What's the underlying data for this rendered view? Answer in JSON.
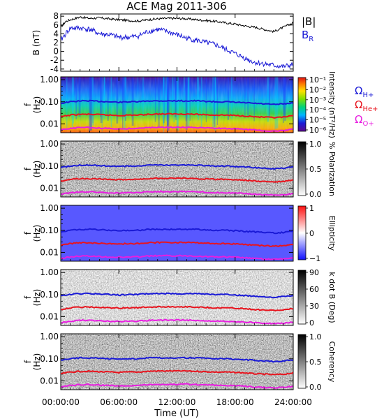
{
  "title": "ACE Mag 2011-306",
  "time_axis": {
    "label": "Time (UT)",
    "ticks": [
      "00:00:00",
      "06:00:00",
      "12:00:00",
      "18:00:00",
      "24:00:00"
    ],
    "range_hours": [
      0,
      24
    ]
  },
  "colors": {
    "B_total": "#000000",
    "B_R": "#1a1ad6",
    "omega_h": "#1a1ad6",
    "omega_he": "#e8141e",
    "omega_o": "#e81ee0"
  },
  "chart_data": [
    {
      "type": "line",
      "panel": "field",
      "ylabel": "B (nT)",
      "ylim": [
        -4.5,
        8.5
      ],
      "yticks": [
        "-4",
        "-2",
        "0",
        "2",
        "4",
        "6",
        "8"
      ],
      "legend": [
        "|B|",
        "B_R"
      ],
      "series": [
        {
          "name": "|B|",
          "x": [
            0,
            0.5,
            1,
            2,
            3,
            4,
            5,
            6,
            7,
            8,
            9,
            10,
            11,
            12,
            13,
            14,
            15,
            16,
            17,
            18,
            19,
            20,
            21,
            22,
            23,
            24
          ],
          "values": [
            5.5,
            6.8,
            7.2,
            7.8,
            7.5,
            7.6,
            7.4,
            7.2,
            7.0,
            6.9,
            7.2,
            7.4,
            7.5,
            7.5,
            7.4,
            7.2,
            7.0,
            6.8,
            6.5,
            6.2,
            5.8,
            5.5,
            5.0,
            4.5,
            5.5,
            6.5
          ]
        },
        {
          "name": "B_R",
          "x": [
            0,
            0.5,
            1,
            2,
            3,
            4,
            5,
            6,
            7,
            8,
            9,
            10,
            11,
            12,
            13,
            14,
            15,
            16,
            17,
            18,
            19,
            20,
            21,
            22,
            23,
            24
          ],
          "values": [
            2.5,
            4.0,
            5.3,
            5.3,
            5.0,
            4.0,
            3.8,
            3.2,
            3.2,
            3.5,
            4.5,
            5.0,
            4.5,
            3.8,
            3.0,
            2.5,
            2.0,
            1.5,
            0.5,
            -0.5,
            -1.5,
            -2.5,
            -2.8,
            -3.2,
            -3.5,
            -3.0
          ]
        }
      ]
    },
    {
      "type": "heatmap",
      "panel": "intensity",
      "ylabel": "f (Hz)",
      "yticks": [
        "1.00",
        "0.10",
        "0.01"
      ],
      "colorbar_label": "Intensity (nT²/Hz)",
      "colorbar_ticks": [
        "10⁻¹",
        "10⁻²",
        "10⁻³",
        "10⁻⁴",
        "10⁻⁵",
        "10⁻⁶"
      ],
      "legend": [
        "ΩH+",
        "ΩHe+",
        "ΩO+"
      ]
    },
    {
      "type": "heatmap",
      "panel": "polarization",
      "ylabel": "f (Hz)",
      "yticks": [
        "1.00",
        "0.10",
        "0.01"
      ],
      "colorbar_label": "% Polarization",
      "colorbar_ticks": [
        "1.0",
        "0.5",
        "0.0"
      ]
    },
    {
      "type": "heatmap",
      "panel": "ellipticity",
      "ylabel": "f (Hz)",
      "yticks": [
        "1.00",
        "0.10",
        "0.01"
      ],
      "colorbar_label": "Ellipticity",
      "colorbar_ticks": [
        "1",
        "0",
        "−1"
      ]
    },
    {
      "type": "heatmap",
      "panel": "kdotb",
      "ylabel": "f (Hz)",
      "yticks": [
        "1.00",
        "0.10",
        "0.01"
      ],
      "colorbar_label": "k dot B (Deg)",
      "colorbar_ticks": [
        "90",
        "60",
        "30",
        "0"
      ]
    },
    {
      "type": "heatmap",
      "panel": "coherency",
      "ylabel": "f (Hz)",
      "yticks": [
        "1.00",
        "0.10",
        "0.01"
      ],
      "colorbar_label": "Coherency",
      "colorbar_ticks": [
        "1.0",
        "0.5",
        "0.0"
      ]
    }
  ],
  "cyclotron_lines": {
    "x": [
      0,
      1,
      2,
      3,
      4,
      5,
      6,
      7,
      8,
      9,
      10,
      11,
      12,
      13,
      14,
      15,
      16,
      17,
      18,
      19,
      20,
      21,
      22,
      23,
      24
    ],
    "omega_h_hz": [
      0.085,
      0.1,
      0.11,
      0.11,
      0.105,
      0.1,
      0.095,
      0.1,
      0.1,
      0.11,
      0.11,
      0.11,
      0.11,
      0.11,
      0.11,
      0.105,
      0.1,
      0.1,
      0.095,
      0.09,
      0.085,
      0.08,
      0.075,
      0.08,
      0.09
    ],
    "omega_he_hz": [
      0.021,
      0.025,
      0.027,
      0.027,
      0.026,
      0.025,
      0.024,
      0.025,
      0.025,
      0.027,
      0.028,
      0.028,
      0.028,
      0.028,
      0.027,
      0.026,
      0.025,
      0.025,
      0.024,
      0.023,
      0.021,
      0.02,
      0.019,
      0.02,
      0.023
    ],
    "omega_o_hz": [
      0.0053,
      0.0062,
      0.0068,
      0.0068,
      0.0065,
      0.0062,
      0.006,
      0.0062,
      0.0063,
      0.0068,
      0.007,
      0.007,
      0.007,
      0.007,
      0.0068,
      0.0065,
      0.0063,
      0.0062,
      0.006,
      0.0057,
      0.0053,
      0.005,
      0.0048,
      0.005,
      0.0057
    ]
  }
}
